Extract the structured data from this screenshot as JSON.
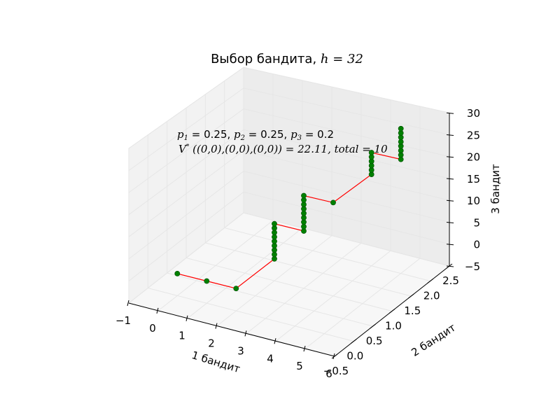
{
  "chart_data": {
    "type": "scatter-3d",
    "title": "Выбор бандита, h=32",
    "title_text": "Выбор бандита, ",
    "title_math": "h = 32",
    "xlabel": "1 бандит",
    "ylabel": "2 бандит",
    "zlabel": "3 бандит",
    "xlim": [
      -1,
      6
    ],
    "ylim": [
      -0.5,
      2.5
    ],
    "zlim": [
      -5,
      30
    ],
    "xticks": [
      -1,
      0,
      1,
      2,
      3,
      4,
      5,
      6
    ],
    "yticks": [
      -0.5,
      0.0,
      0.5,
      1.0,
      1.5,
      2.0,
      2.5
    ],
    "zticks": [
      -5,
      0,
      5,
      10,
      15,
      20,
      25,
      30
    ],
    "grid": true,
    "line_color": "#ff0000",
    "marker_color": "#008000",
    "annotation": {
      "line1": "p1 = 0.25, p2 = 0.25, p3 = 0.2",
      "p1_sym": "p",
      "p1_sub": "1",
      "p1_val": " = 0.25, ",
      "p2_sym": "p",
      "p2_sub": "2",
      "p2_val": " = 0.25, ",
      "p3_sym": "p",
      "p3_sub": "3",
      "p3_val": " = 0.2",
      "line2": "V* ((0,0),(0,0),(0,0)) = 22.11,   total = 10",
      "v_sym": "V",
      "v_sup": "*",
      "v_rest": " ((0,0),(0,0),(0,0)) = 22.11,   total = 10"
    },
    "series": [
      {
        "x": 0,
        "y": 0,
        "z": [
          0
        ]
      },
      {
        "x": 1,
        "y": 0,
        "z": [
          0
        ]
      },
      {
        "x": 2,
        "y": 0,
        "z": [
          0
        ]
      },
      {
        "x": 2,
        "y": 1,
        "z": [
          0,
          1,
          2,
          3,
          4,
          5,
          6,
          7,
          8
        ]
      },
      {
        "x": 3,
        "y": 1,
        "z": [
          8,
          9,
          10,
          11,
          12,
          13,
          14,
          15,
          16
        ]
      },
      {
        "x": 4,
        "y": 1,
        "z": [
          16
        ]
      },
      {
        "x": 4,
        "y": 2,
        "z": [
          16,
          17,
          18,
          19,
          20,
          21
        ]
      },
      {
        "x": 5,
        "y": 2,
        "z": [
          21,
          22,
          23,
          24,
          25,
          26,
          27,
          28
        ]
      }
    ]
  }
}
